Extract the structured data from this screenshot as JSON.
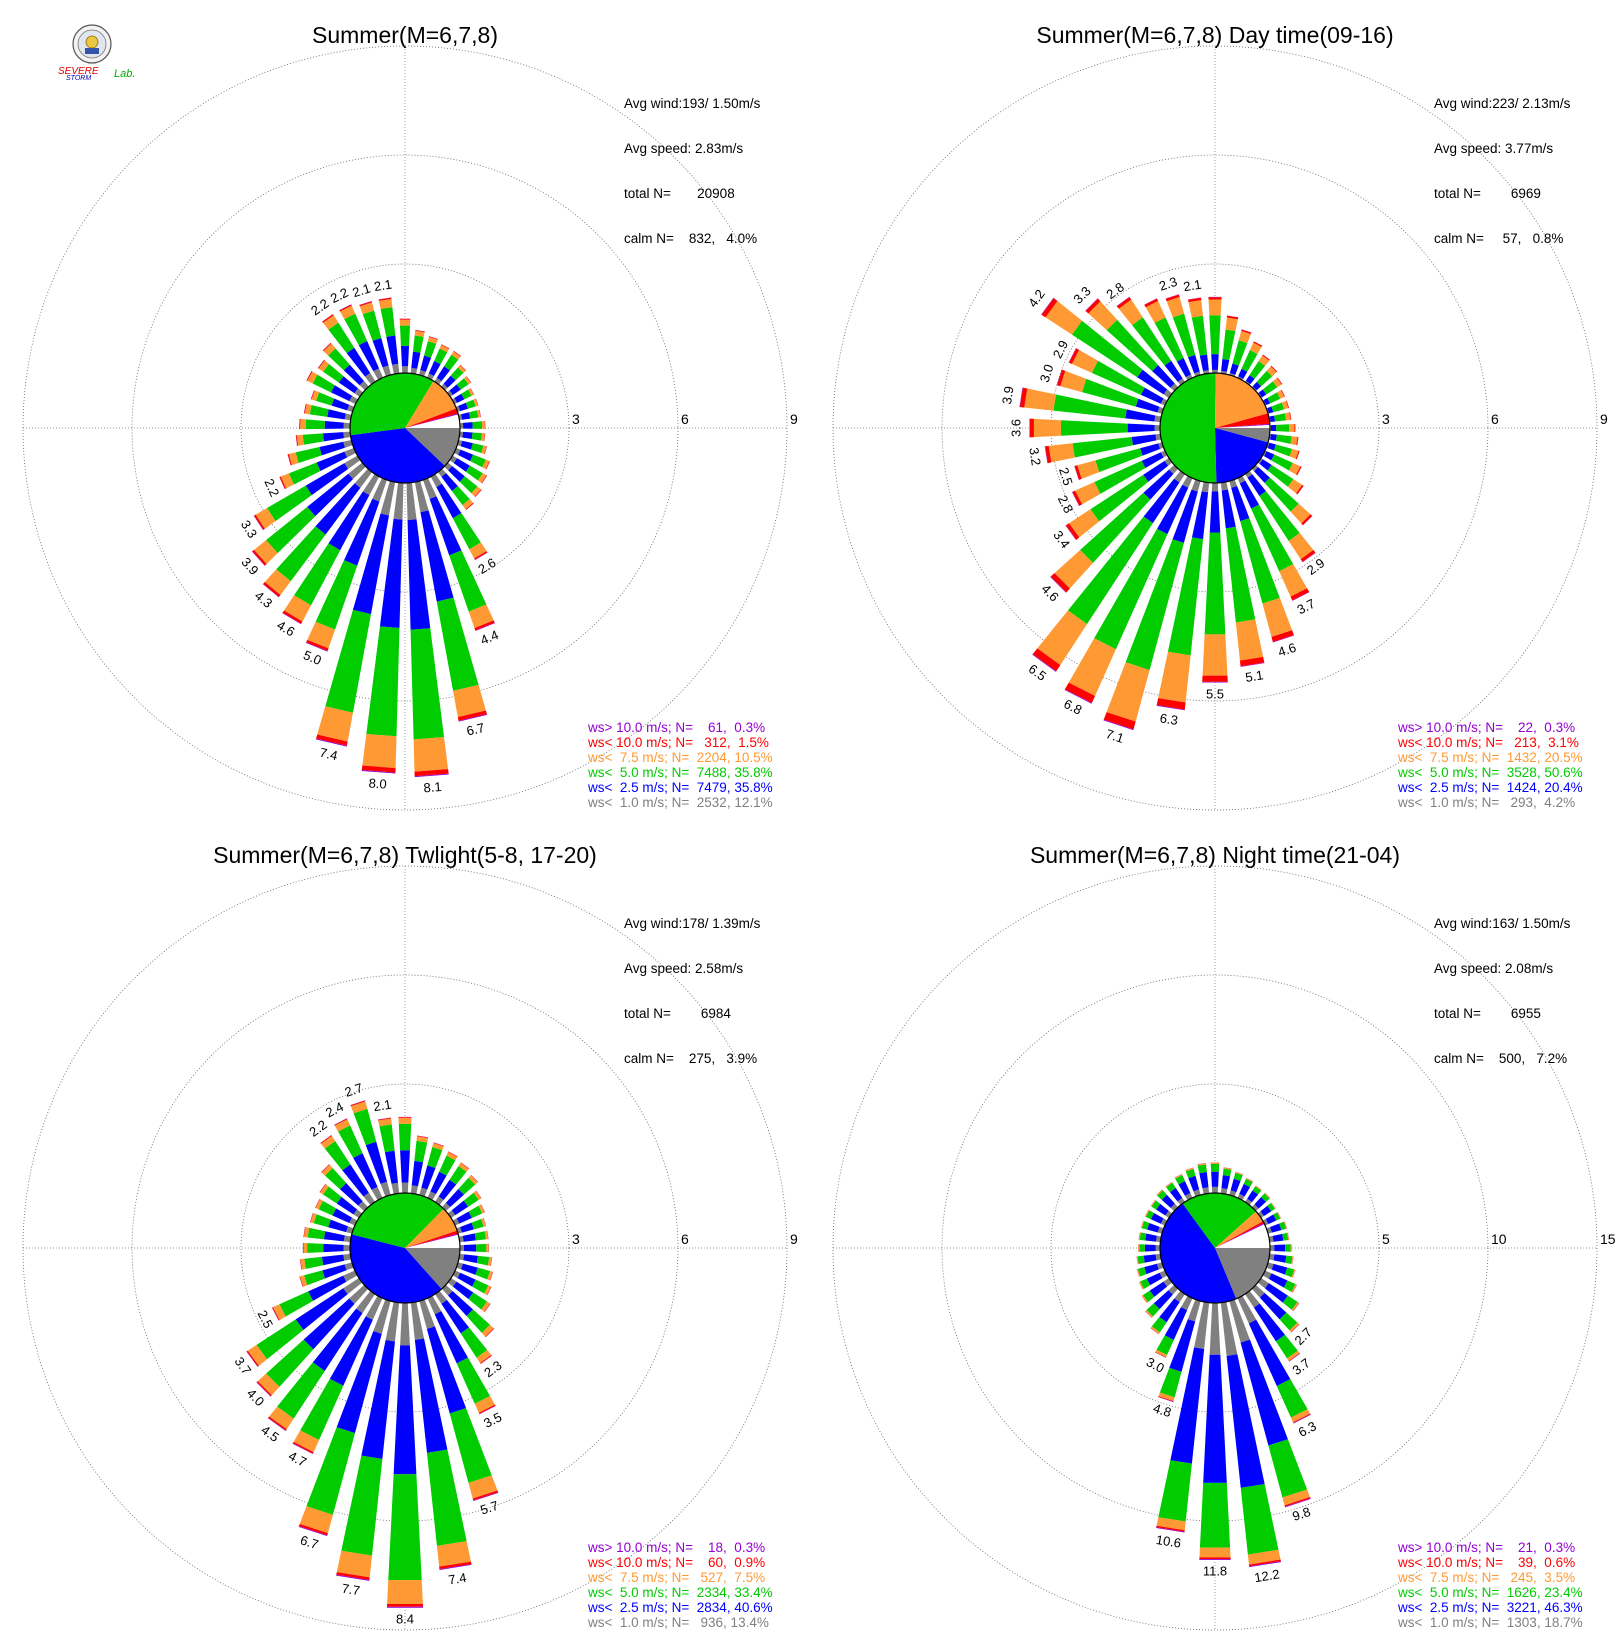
{
  "logo": {
    "text_severe": "SEVERE",
    "text_storm": "STORM",
    "text_lab": "Lab."
  },
  "colors": {
    "purple": "#9400D3",
    "red": "#FF0000",
    "orange": "#FF9933",
    "green": "#00CC00",
    "blue": "#0000FF",
    "gray": "#808080"
  },
  "chart_data": [
    {
      "type": "windrose",
      "title": "Summer(M=6,7,8)",
      "stats": [
        "Avg wind:193/ 1.50m/s",
        "Avg speed: 2.83m/s",
        "total N=       20908",
        "calm N=    832,   4.0%"
      ],
      "rings": [
        3,
        6,
        9
      ],
      "legend": [
        {
          "text": "ws> 10.0 m/s; N=    61,  0.3%",
          "color": "purple"
        },
        {
          "text": "ws< 10.0 m/s; N=   312,  1.5%",
          "color": "red"
        },
        {
          "text": "ws<  7.5 m/s; N=  2204, 10.5%",
          "color": "orange"
        },
        {
          "text": "ws<  5.0 m/s; N=  7488, 35.8%",
          "color": "green"
        },
        {
          "text": "ws<  2.5 m/s; N=  7479, 35.8%",
          "color": "blue"
        },
        {
          "text": "ws<  1.0 m/s; N=  2532, 12.1%",
          "color": "gray"
        }
      ],
      "pie": [
        {
          "class": "ws< 1.0",
          "pct": 12.1
        },
        {
          "class": "ws< 2.5",
          "pct": 35.8
        },
        {
          "class": "ws< 5.0",
          "pct": 35.8
        },
        {
          "class": "ws< 7.5",
          "pct": 10.5
        },
        {
          "class": "ws< 10.0",
          "pct": 1.5
        },
        {
          "class": "ws> 10.0",
          "pct": 0.3
        }
      ],
      "direction_totals": [
        1.5,
        1.2,
        1.1,
        1.0,
        1.0,
        0.8,
        0.7,
        0.6,
        0.6,
        0.6,
        0.7,
        0.7,
        0.8,
        1.0,
        1.1,
        1.2,
        1.3,
        2.6,
        4.4,
        6.7,
        8.1,
        8.0,
        7.4,
        5.0,
        4.6,
        4.3,
        3.9,
        3.3,
        2.2,
        1.8,
        1.5,
        1.4,
        1.3,
        1.2,
        1.5,
        1.4,
        1.6,
        2.2,
        2.2,
        2.1,
        2.1
      ],
      "labeled": {
        "17": "2.6",
        "18": "4.4",
        "19": "6.7",
        "20": "8.1",
        "21": "8.0",
        "22": "7.4",
        "23": "5.0",
        "24": "4.6",
        "25": "4.3",
        "26": "3.9",
        "27": "3.3",
        "28": "2.2",
        "37": "2.2",
        "38": "2.2",
        "39": "2.1",
        "40": "2.1"
      }
    },
    {
      "type": "windrose",
      "title": "Summer(M=6,7,8) Day time(09-16)",
      "stats": [
        "Avg wind:223/ 2.13m/s",
        "Avg speed: 3.77m/s",
        "total N=        6969",
        "calm N=     57,   0.8%"
      ],
      "rings": [
        3,
        6,
        9
      ],
      "legend": [
        {
          "text": "ws> 10.0 m/s; N=    22,  0.3%",
          "color": "purple"
        },
        {
          "text": "ws< 10.0 m/s; N=   213,  3.1%",
          "color": "red"
        },
        {
          "text": "ws<  7.5 m/s; N=  1432, 20.5%",
          "color": "orange"
        },
        {
          "text": "ws<  5.0 m/s; N=  3528, 50.6%",
          "color": "green"
        },
        {
          "text": "ws<  2.5 m/s; N=  1424, 20.4%",
          "color": "blue"
        },
        {
          "text": "ws<  1.0 m/s; N=   293,  4.2%",
          "color": "gray"
        }
      ],
      "pie": [
        {
          "class": "ws< 1.0",
          "pct": 4.2
        },
        {
          "class": "ws< 2.5",
          "pct": 20.4
        },
        {
          "class": "ws< 5.0",
          "pct": 50.6
        },
        {
          "class": "ws< 7.5",
          "pct": 20.5
        },
        {
          "class": "ws< 10.0",
          "pct": 3.1
        },
        {
          "class": "ws> 10.0",
          "pct": 0.3
        }
      ],
      "direction_totals": [
        2.1,
        1.6,
        1.3,
        1.1,
        0.9,
        0.8,
        0.7,
        0.6,
        0.6,
        0.6,
        0.7,
        0.8,
        0.9,
        1.1,
        1.4,
        2.1,
        2.9,
        3.7,
        4.6,
        5.1,
        5.5,
        6.3,
        7.1,
        6.8,
        6.5,
        4.6,
        3.4,
        2.8,
        2.5,
        3.2,
        3.6,
        3.9,
        3.0,
        2.9,
        4.2,
        3.3,
        2.8,
        2.4,
        2.3,
        2.1
      ],
      "labeled": {
        "16": "2.9",
        "17": "3.7",
        "18": "4.6",
        "19": "5.1",
        "20": "5.5",
        "21": "6.3",
        "22": "7.1",
        "23": "6.8",
        "24": "6.5",
        "25": "4.6",
        "26": "3.4",
        "27": "2.8",
        "28": "2.5",
        "29": "3.2",
        "30": "3.6",
        "31": "3.9",
        "32": "3.0",
        "33": "2.9",
        "34": "4.2",
        "35": "3.3",
        "36": "2.8",
        "38": "2.3",
        "39": "2.1"
      }
    },
    {
      "type": "windrose",
      "title": "Summer(M=6,7,8) Twlight(5-8, 17-20)",
      "stats": [
        "Avg wind:178/ 1.39m/s",
        "Avg speed: 2.58m/s",
        "total N=        6984",
        "calm N=    275,   3.9%"
      ],
      "rings": [
        3,
        6,
        9
      ],
      "legend": [
        {
          "text": "ws> 10.0 m/s; N=    18,  0.3%",
          "color": "purple"
        },
        {
          "text": "ws< 10.0 m/s; N=    60,  0.9%",
          "color": "red"
        },
        {
          "text": "ws<  7.5 m/s; N=   527,  7.5%",
          "color": "orange"
        },
        {
          "text": "ws<  5.0 m/s; N=  2334, 33.4%",
          "color": "green"
        },
        {
          "text": "ws<  2.5 m/s; N=  2834, 40.6%",
          "color": "blue"
        },
        {
          "text": "ws<  1.0 m/s; N=   936, 13.4%",
          "color": "gray"
        }
      ],
      "pie": [
        {
          "class": "ws< 1.0",
          "pct": 13.4
        },
        {
          "class": "ws< 2.5",
          "pct": 40.6
        },
        {
          "class": "ws< 5.0",
          "pct": 33.4
        },
        {
          "class": "ws< 7.5",
          "pct": 7.5
        },
        {
          "class": "ws< 10.0",
          "pct": 0.9
        },
        {
          "class": "ws> 10.0",
          "pct": 0.3
        }
      ],
      "direction_totals": [
        2.1,
        1.6,
        1.5,
        1.4,
        1.3,
        1.2,
        1.0,
        0.9,
        0.8,
        0.8,
        0.8,
        0.9,
        1.0,
        1.1,
        1.3,
        1.8,
        2.3,
        3.5,
        5.7,
        7.4,
        8.4,
        7.7,
        6.7,
        4.7,
        4.5,
        4.0,
        3.7,
        2.5,
        1.5,
        1.4,
        1.3,
        1.3,
        1.2,
        1.2,
        1.3,
        1.6,
        2.2,
        2.4,
        2.7,
        2.1
      ],
      "labeled": {
        "16": "2.3",
        "17": "3.5",
        "18": "5.7",
        "19": "7.4",
        "20": "8.4",
        "21": "7.7",
        "22": "6.7",
        "23": "4.7",
        "24": "4.5",
        "25": "4.0",
        "26": "3.7",
        "27": "2.5",
        "36": "2.2",
        "37": "2.4",
        "38": "2.7",
        "39": "2.1"
      }
    },
    {
      "type": "windrose",
      "title": "Summer(M=6,7,8) Night time(21-04)",
      "stats": [
        "Avg wind:163/ 1.50m/s",
        "Avg speed: 2.08m/s",
        "total N=        6955",
        "calm N=    500,   7.2%"
      ],
      "rings": [
        5,
        10,
        15
      ],
      "legend": [
        {
          "text": "ws> 10.0 m/s; N=    21,  0.3%",
          "color": "purple"
        },
        {
          "text": "ws< 10.0 m/s; N=    39,  0.6%",
          "color": "red"
        },
        {
          "text": "ws<  7.5 m/s; N=   245,  3.5%",
          "color": "orange"
        },
        {
          "text": "ws<  5.0 m/s; N=  1626, 23.4%",
          "color": "green"
        },
        {
          "text": "ws<  2.5 m/s; N=  3221, 46.3%",
          "color": "blue"
        },
        {
          "text": "ws<  1.0 m/s; N=  1303, 18.7%",
          "color": "gray"
        }
      ],
      "pie": [
        {
          "class": "ws< 1.0",
          "pct": 18.7
        },
        {
          "class": "ws< 2.5",
          "pct": 46.3
        },
        {
          "class": "ws< 5.0",
          "pct": 23.4
        },
        {
          "class": "ws< 7.5",
          "pct": 3.5
        },
        {
          "class": "ws< 10.0",
          "pct": 0.6
        },
        {
          "class": "ws> 10.0",
          "pct": 0.3
        }
      ],
      "direction_totals": [
        1.4,
        1.2,
        1.1,
        1.0,
        0.9,
        0.9,
        0.8,
        0.8,
        0.9,
        0.9,
        1.0,
        1.1,
        1.3,
        1.6,
        2.1,
        2.7,
        3.7,
        6.3,
        9.8,
        12.2,
        11.8,
        10.6,
        4.8,
        3.0,
        2.2,
        1.8,
        1.5,
        1.3,
        1.2,
        1.1,
        1.0,
        1.0,
        1.0,
        1.0,
        1.0,
        1.1,
        1.1,
        1.2,
        1.3,
        1.4
      ],
      "labeled": {
        "15": "2.7",
        "16": "3.7",
        "17": "6.3",
        "18": "9.8",
        "19": "12.2",
        "20": "11.8",
        "21": "10.6",
        "22": "4.8",
        "23": "3.0"
      }
    }
  ]
}
